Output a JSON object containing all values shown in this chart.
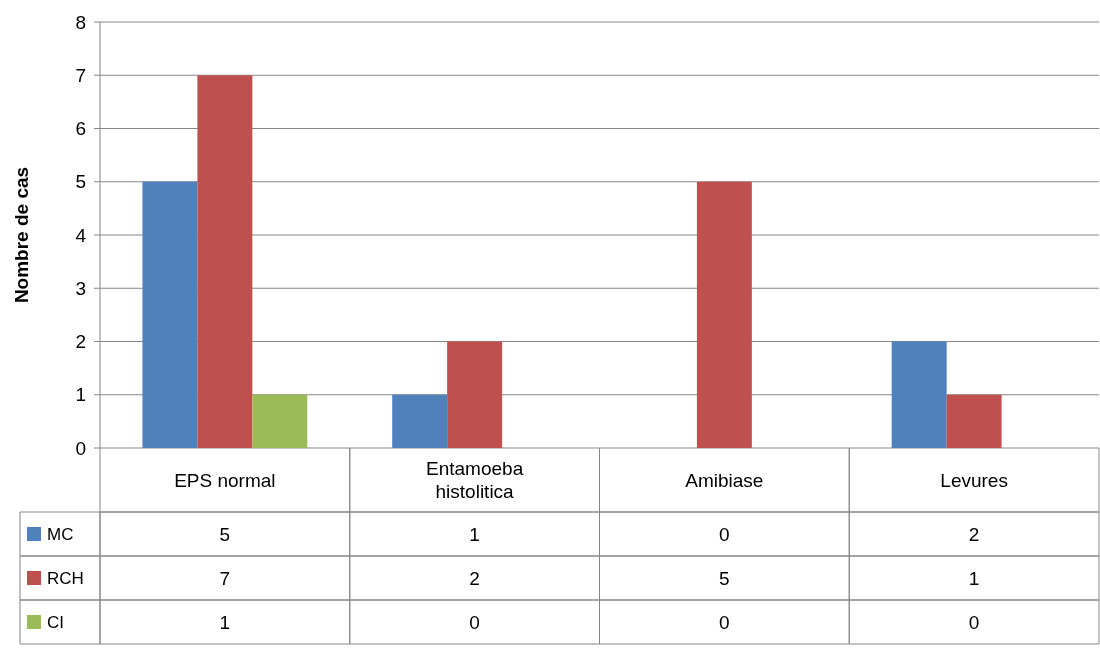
{
  "chart_data": {
    "type": "bar",
    "ylabel": "Nombre de cas",
    "categories": [
      "EPS normal",
      "Entamoeba histolitica",
      "Amibiase",
      "Levures"
    ],
    "series": [
      {
        "name": "MC",
        "color": "#4f81bd",
        "values": [
          5,
          1,
          0,
          2
        ]
      },
      {
        "name": "RCH",
        "color": "#c0504d",
        "values": [
          7,
          2,
          5,
          1
        ]
      },
      {
        "name": "CI",
        "color": "#9bbb59",
        "values": [
          1,
          0,
          0,
          0
        ]
      }
    ],
    "ylim": [
      0,
      8
    ],
    "yticks": [
      0,
      1,
      2,
      3,
      4,
      5,
      6,
      7,
      8
    ],
    "grid": "y",
    "legend": "bottom",
    "data_labels": true
  }
}
